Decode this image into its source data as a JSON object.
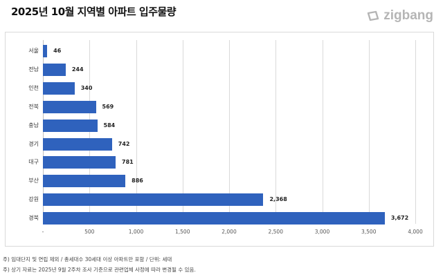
{
  "header": {
    "title": "2025년 10월 지역별 아파트 입주물량",
    "brand": "zigbang"
  },
  "notes": [
    "주) 임대단지 및 연립 제외 / 총세대수 30세대 이상 아파트만 포함 / 단위: 세대",
    "주) 상기 자료는 2025년 9월 2주차 조사 기준으로 관련업체 사정에 따라 변경될 수 있음."
  ],
  "colors": {
    "bar": "#2f62bd",
    "grid": "#d9d9d9",
    "brand": "#b5b5b5"
  },
  "chart_data": {
    "type": "bar",
    "orientation": "horizontal",
    "title": "2025년 10월 지역별 아파트 입주물량",
    "xlabel": "",
    "ylabel": "",
    "unit": "세대",
    "categories": [
      "서울",
      "전남",
      "인천",
      "전북",
      "충남",
      "경기",
      "대구",
      "부산",
      "강원",
      "경북"
    ],
    "values": [
      46,
      244,
      340,
      569,
      584,
      742,
      781,
      886,
      2368,
      3672
    ],
    "value_labels": [
      "46",
      "244",
      "340",
      "569",
      "584",
      "742",
      "781",
      "886",
      "2,368",
      "3,672"
    ],
    "xlim": [
      0,
      4000
    ],
    "x_ticks": [
      "-",
      "500",
      "1,000",
      "1,500",
      "2,000",
      "2,500",
      "3,000",
      "3,500",
      "4,000"
    ],
    "x_tick_values": [
      0,
      500,
      1000,
      1500,
      2000,
      2500,
      3000,
      3500,
      4000
    ],
    "grid": true,
    "legend": "none"
  }
}
